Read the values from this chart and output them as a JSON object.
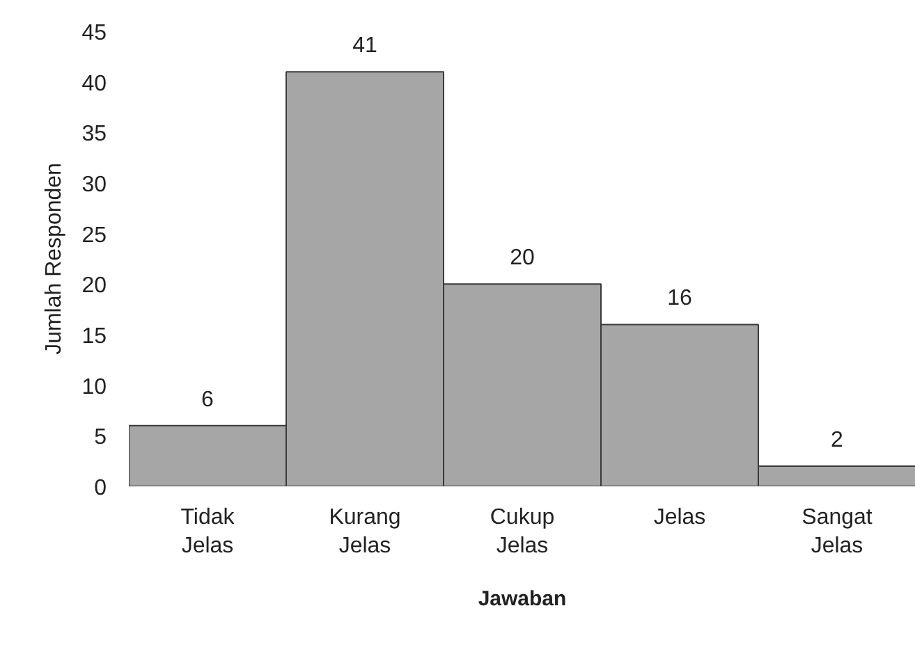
{
  "chart_data": {
    "type": "bar",
    "categories": [
      "Tidak Jelas",
      "Kurang Jelas",
      "Cukup Jelas",
      "Jelas",
      "Sangat Jelas"
    ],
    "values": [
      6,
      41,
      20,
      16,
      2
    ],
    "color": "#a6a6a6",
    "ylim": [
      0,
      45
    ],
    "yticks": [
      0,
      5,
      10,
      15,
      20,
      25,
      30,
      35,
      40,
      45
    ],
    "xlabel": "Jawaban",
    "ylabel": "Jumlah Responden",
    "data_labels": true,
    "grid": false
  }
}
